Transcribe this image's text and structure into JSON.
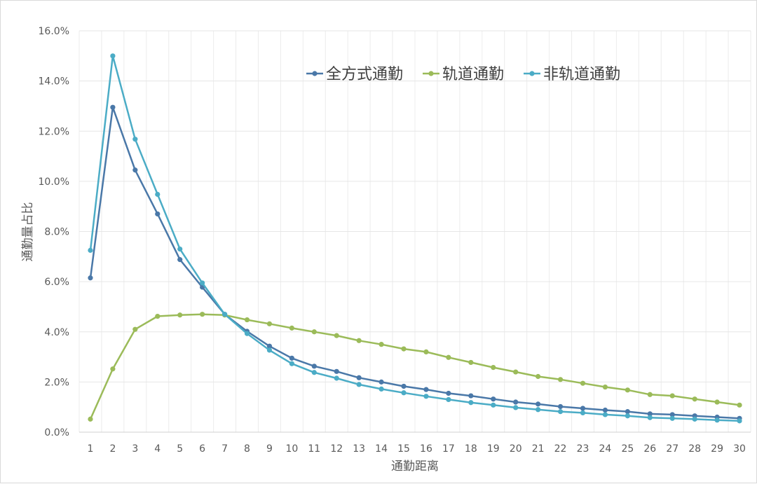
{
  "chart_data": {
    "type": "line",
    "title": "",
    "xlabel": "通勤距离",
    "ylabel": "通勤量占比",
    "x": [
      1,
      2,
      3,
      4,
      5,
      6,
      7,
      8,
      9,
      10,
      11,
      12,
      13,
      14,
      15,
      16,
      17,
      18,
      19,
      20,
      21,
      22,
      23,
      24,
      25,
      26,
      27,
      28,
      29,
      30
    ],
    "ylim": [
      0,
      16
    ],
    "yticks": [
      "0.0%",
      "2.0%",
      "4.0%",
      "6.0%",
      "8.0%",
      "10.0%",
      "12.0%",
      "14.0%",
      "16.0%"
    ],
    "grid": true,
    "legend": "top-right",
    "series": [
      {
        "name": "全方式通勤",
        "color": "#4a78a8",
        "values": [
          6.15,
          12.95,
          10.45,
          8.7,
          6.88,
          5.78,
          4.7,
          4.02,
          3.43,
          2.95,
          2.63,
          2.42,
          2.17,
          2.0,
          1.83,
          1.7,
          1.55,
          1.45,
          1.32,
          1.2,
          1.12,
          1.02,
          0.95,
          0.88,
          0.82,
          0.73,
          0.7,
          0.65,
          0.6,
          0.55
        ]
      },
      {
        "name": "轨道通勤",
        "color": "#9bbb59",
        "values": [
          0.52,
          2.52,
          4.1,
          4.62,
          4.67,
          4.7,
          4.67,
          4.48,
          4.32,
          4.15,
          4.0,
          3.85,
          3.65,
          3.5,
          3.32,
          3.2,
          2.98,
          2.78,
          2.58,
          2.4,
          2.22,
          2.1,
          1.95,
          1.8,
          1.68,
          1.5,
          1.45,
          1.32,
          1.2,
          1.08
        ]
      },
      {
        "name": "非轨道通勤",
        "color": "#4bacc6",
        "values": [
          7.25,
          15.0,
          11.68,
          9.48,
          7.3,
          5.95,
          4.7,
          3.93,
          3.27,
          2.73,
          2.38,
          2.15,
          1.9,
          1.72,
          1.57,
          1.43,
          1.3,
          1.18,
          1.08,
          0.98,
          0.9,
          0.82,
          0.77,
          0.7,
          0.65,
          0.58,
          0.55,
          0.52,
          0.48,
          0.45
        ]
      }
    ]
  }
}
